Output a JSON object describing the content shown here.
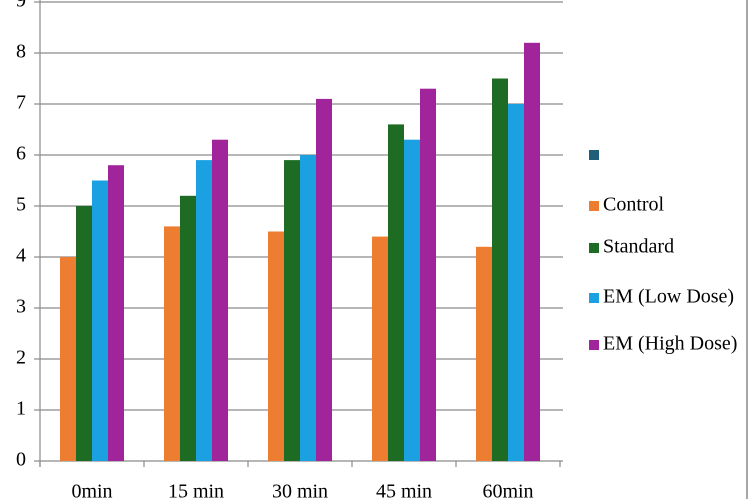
{
  "chart_data": {
    "type": "bar",
    "categories": [
      "0min",
      "15 min",
      "30 min",
      "45 min",
      "60min"
    ],
    "series": [
      {
        "name": null,
        "color": "#1f5f7a",
        "values": [
          null,
          null,
          null,
          null,
          null
        ]
      },
      {
        "name": "Control",
        "color": "#ed7d31",
        "values": [
          4,
          4.6,
          4.5,
          4.4,
          4.2
        ]
      },
      {
        "name": "Standard",
        "color": "#1e6b24",
        "values": [
          5,
          5.2,
          5.9,
          6.6,
          7.5
        ]
      },
      {
        "name": "EM  (Low Dose)",
        "color": "#1ba1e2",
        "values": [
          5.5,
          5.9,
          6.0,
          6.3,
          7.0
        ]
      },
      {
        "name": "EM (High Dose)",
        "color": "#a1259a",
        "values": [
          5.8,
          6.3,
          7.1,
          7.3,
          8.2
        ]
      }
    ],
    "ylim": [
      0,
      9
    ],
    "yticks": [
      0,
      1,
      2,
      3,
      4,
      5,
      6,
      7,
      8,
      9
    ],
    "grid": true,
    "legend": "right"
  }
}
